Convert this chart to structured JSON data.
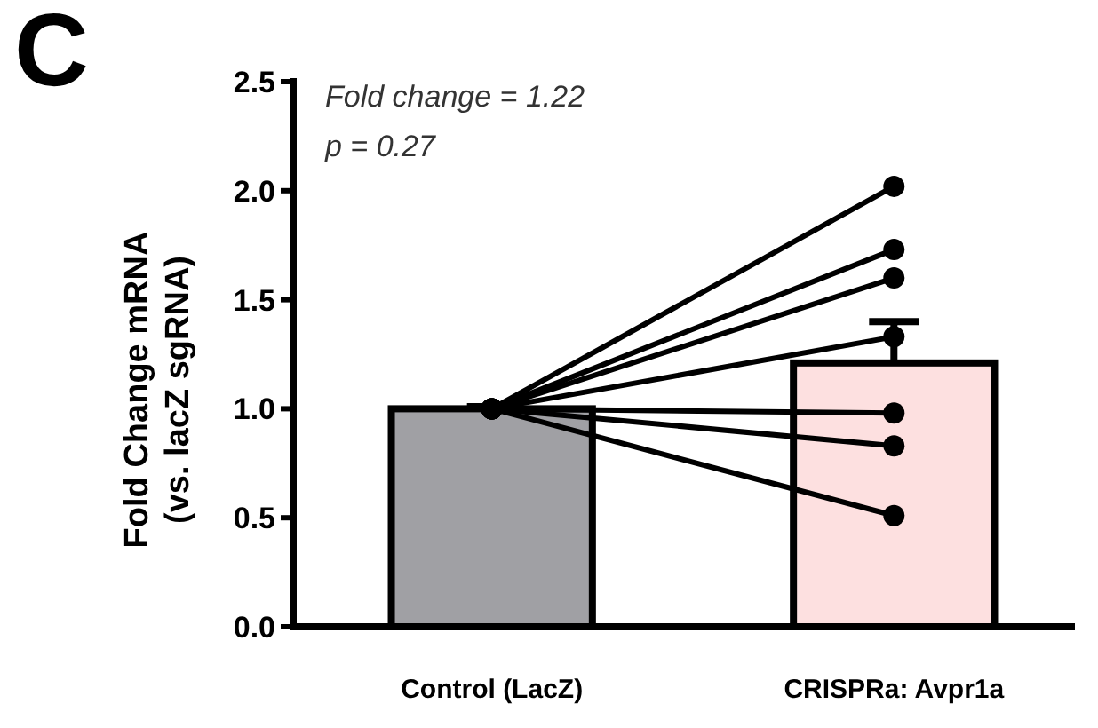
{
  "chart_data": {
    "type": "bar",
    "title": "C",
    "ylabel": "Fold Change mRNA\n(vs. lacZ sgRNA)",
    "categories": [
      "Control (LacZ)",
      "CRISPRa: Avpr1a"
    ],
    "annotations": [
      "Fold change = 1.22",
      "p = 0.27"
    ],
    "ylim": [
      0,
      2.5
    ],
    "yticks": [
      {
        "value": 0,
        "label": "0.0"
      },
      {
        "value": 0.5,
        "label": "0.5"
      },
      {
        "value": 1,
        "label": "1.0"
      },
      {
        "value": 1.5,
        "label": "1.5"
      },
      {
        "value": 2,
        "label": "2.0"
      },
      {
        "value": 2.5,
        "label": "2.5"
      }
    ],
    "grid": false,
    "marker": "circle",
    "values": [
      1.0,
      1.21
    ],
    "colors": [
      "#a0a0a4",
      "#fde0e0"
    ],
    "errors": [
      [
        1.0,
        1.01
      ],
      [
        1.21,
        1.4
      ]
    ],
    "series": [
      {
        "type": "line",
        "color": "#000000",
        "values": [
          1.0,
          2.02
        ]
      },
      {
        "type": "line",
        "color": "#000000",
        "values": [
          1.0,
          1.73
        ]
      },
      {
        "type": "line",
        "color": "#000000",
        "values": [
          1.0,
          1.6
        ]
      },
      {
        "type": "line",
        "color": "#000000",
        "values": [
          1.0,
          1.33
        ]
      },
      {
        "type": "line",
        "color": "#000000",
        "values": [
          1.0,
          0.98
        ]
      },
      {
        "type": "line",
        "color": "#000000",
        "values": [
          1.0,
          0.83
        ]
      },
      {
        "type": "line",
        "color": "#000000",
        "values": [
          1.0,
          0.51
        ]
      }
    ]
  }
}
